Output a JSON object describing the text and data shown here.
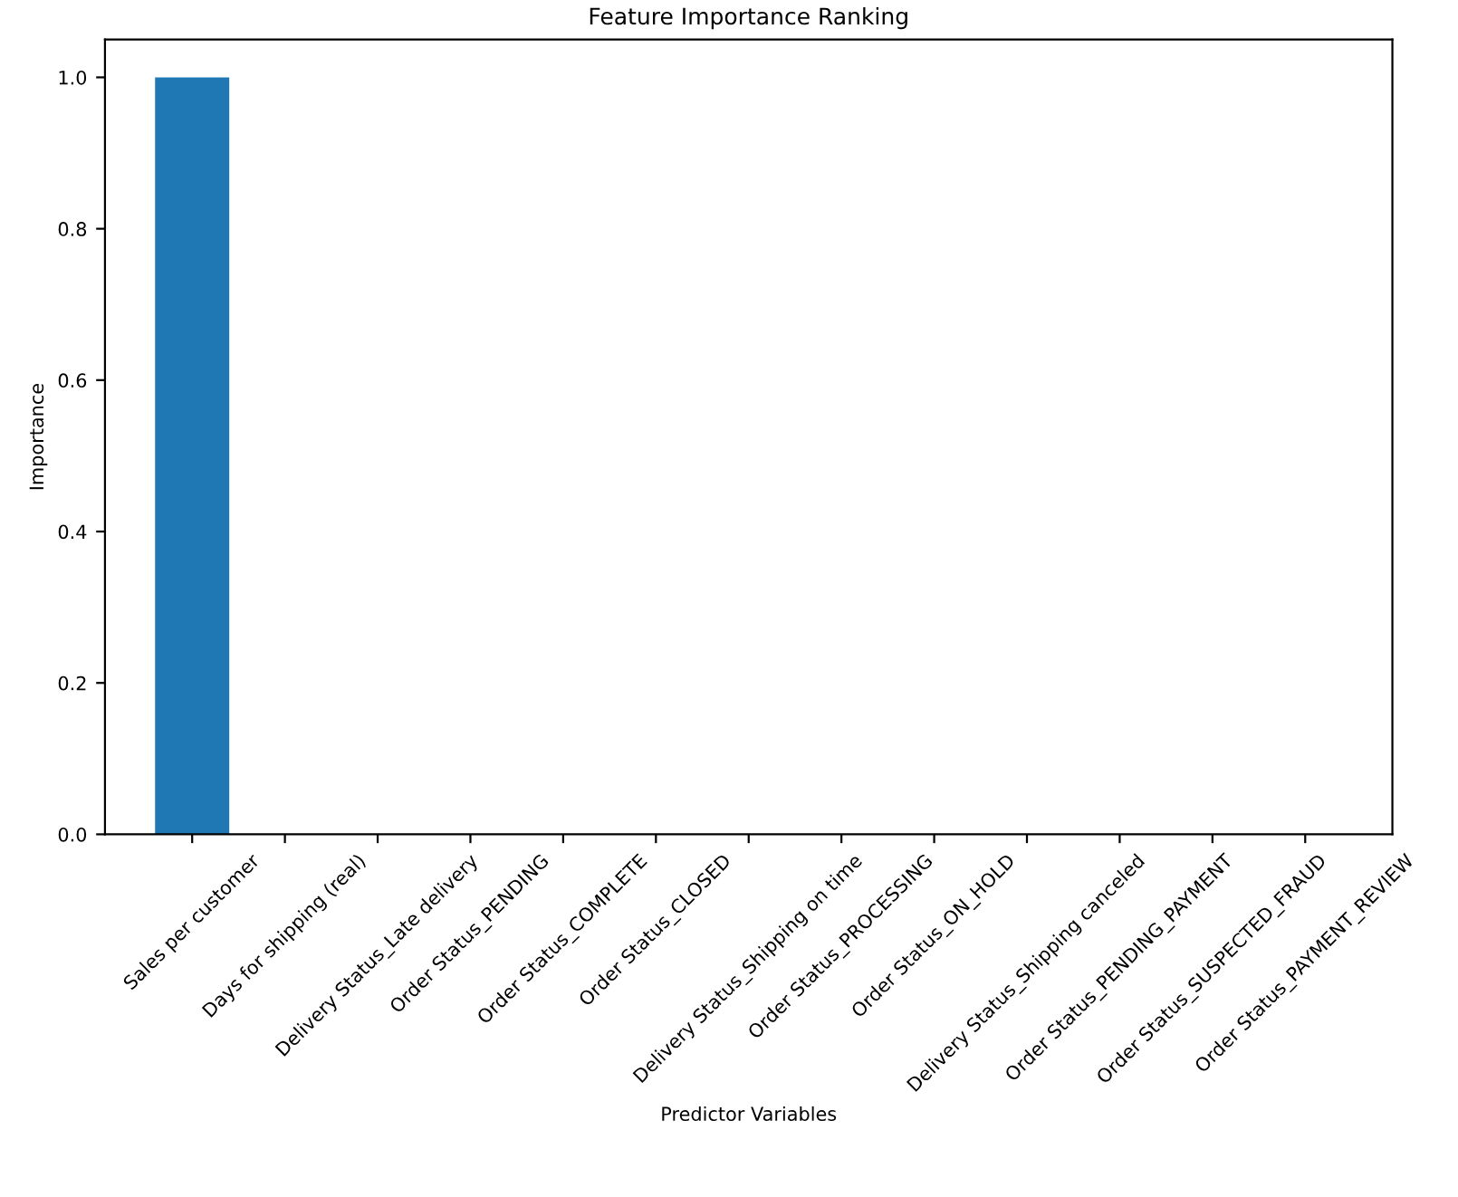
{
  "chart_data": {
    "type": "bar",
    "title": "Feature Importance Ranking",
    "xlabel": "Predictor Variables",
    "ylabel": "Importance",
    "categories": [
      "Sales per customer",
      "Days for shipping (real)",
      "Delivery Status_Late delivery",
      "Order Status_PENDING",
      "Order Status_COMPLETE",
      "Order Status_CLOSED",
      "Delivery Status_Shipping on time",
      "Order Status_PROCESSING",
      "Order Status_ON_HOLD",
      "Delivery Status_Shipping canceled",
      "Order Status_PENDING_PAYMENT",
      "Order Status_SUSPECTED_FRAUD",
      "Order Status_PAYMENT_REVIEW"
    ],
    "values": [
      1.0,
      0,
      0,
      0,
      0,
      0,
      0,
      0,
      0,
      0,
      0,
      0,
      0
    ],
    "color": "#1f77b4",
    "ylim": [
      0,
      1.05
    ],
    "yticks": [
      {
        "value": 0,
        "label": "0.0"
      },
      0.2,
      0.4,
      0.6,
      0.8,
      {
        "value": 1,
        "label": "1.0"
      }
    ],
    "grid": false
  }
}
